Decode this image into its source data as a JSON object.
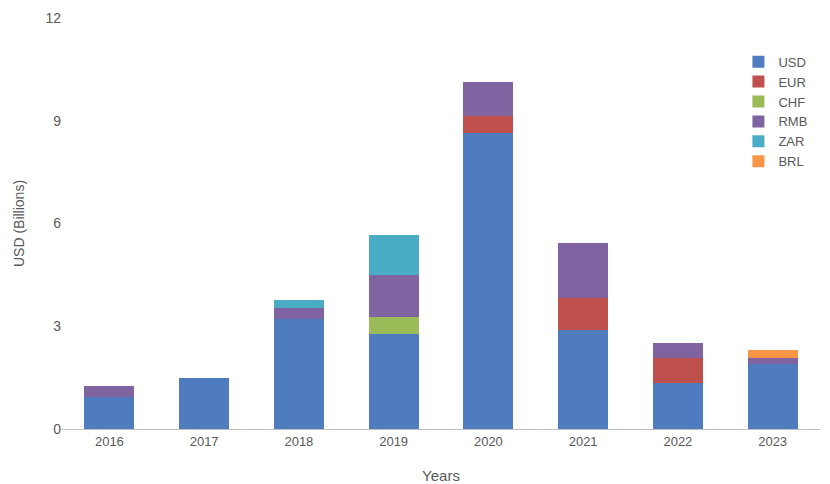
{
  "chart_data": {
    "type": "bar",
    "stacked": true,
    "x_label": "Years",
    "y_label": "USD (Billions)",
    "categories": [
      "2016",
      "2017",
      "2018",
      "2019",
      "2020",
      "2021",
      "2022",
      "2023"
    ],
    "series": [
      {
        "name": "USD",
        "color": "#4f7bbf",
        "values": [
          0.93,
          1.48,
          3.22,
          2.78,
          8.64,
          2.9,
          1.33,
          1.91
        ]
      },
      {
        "name": "EUR",
        "color": "#c0504d",
        "values": [
          0,
          0,
          0,
          0,
          0.49,
          0.93,
          0.73,
          0
        ]
      },
      {
        "name": "CHF",
        "color": "#9bbb59",
        "values": [
          0,
          0,
          0,
          0.5,
          0,
          0,
          0,
          0
        ]
      },
      {
        "name": "RMB",
        "color": "#8064a2",
        "values": [
          0.32,
          0,
          0.32,
          1.21,
          0.99,
          1.59,
          0.46,
          0.15
        ]
      },
      {
        "name": "ZAR",
        "color": "#4bacc6",
        "values": [
          0,
          0,
          0.23,
          1.16,
          0,
          0,
          0,
          0
        ]
      },
      {
        "name": "BRL",
        "color": "#f79646",
        "values": [
          0,
          0,
          0,
          0,
          0,
          0,
          0,
          0.26
        ]
      }
    ],
    "ylim": [
      0,
      12
    ],
    "yticks": [
      0,
      3,
      6,
      9,
      12
    ],
    "grid": false,
    "legend": "upper right"
  }
}
